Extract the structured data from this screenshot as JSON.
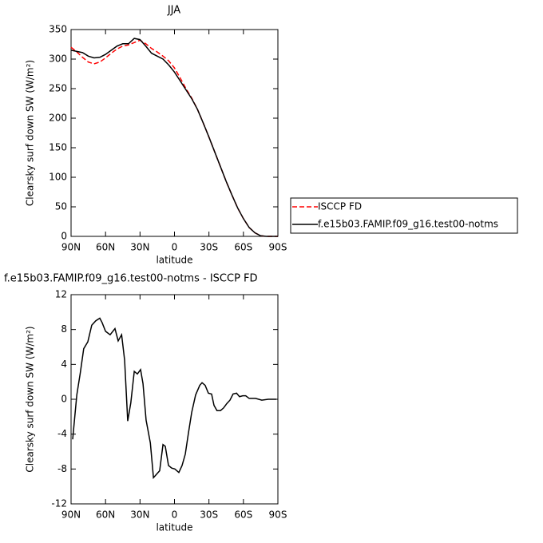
{
  "chart_data": [
    {
      "type": "line",
      "title": "JJA",
      "xlabel": "latitude",
      "ylabel": "Clearsky surf down SW (W/m²)",
      "x": [
        90,
        85,
        80,
        75,
        70,
        65,
        60,
        55,
        50,
        45,
        40,
        35,
        30,
        25,
        20,
        15,
        10,
        5,
        0,
        -5,
        -10,
        -15,
        -20,
        -25,
        -30,
        -35,
        -40,
        -45,
        -50,
        -55,
        -60,
        -65,
        -70,
        -75,
        -80,
        -85,
        -90
      ],
      "series": [
        {
          "name": "ISCCP FD",
          "color": "#ff0000",
          "dash": true,
          "values": [
            320,
            312,
            303,
            295,
            292,
            295,
            302,
            310,
            317,
            322,
            324,
            328,
            332,
            326,
            318,
            312,
            305,
            297,
            285,
            268,
            250,
            234,
            215,
            192,
            168,
            143,
            118,
            93,
            70,
            48,
            30,
            15,
            6,
            1,
            0,
            0,
            0
          ]
        },
        {
          "name": "f.e15b03.FAMIP.f09_g16.test00-notms",
          "color": "#000000",
          "dash": false,
          "values": [
            315,
            313,
            311,
            305,
            302,
            303,
            308,
            315,
            322,
            326,
            326,
            335,
            333,
            322,
            310,
            305,
            300,
            290,
            278,
            263,
            248,
            233,
            215,
            192,
            168,
            143,
            118,
            93,
            70,
            48,
            30,
            15,
            6,
            1,
            0,
            0,
            0
          ]
        }
      ],
      "xlim": [
        90,
        -90
      ],
      "xticks": [
        {
          "value": 90,
          "label": "90N"
        },
        {
          "value": 60,
          "label": "60N"
        },
        {
          "value": 30,
          "label": "30N"
        },
        0,
        {
          "value": -30,
          "label": "30S"
        },
        {
          "value": -60,
          "label": "60S"
        },
        {
          "value": -90,
          "label": "90S"
        }
      ],
      "ylim": [
        0,
        350
      ],
      "yticks": [
        0,
        50,
        100,
        150,
        200,
        250,
        300,
        350
      ],
      "legend": "right"
    },
    {
      "type": "line",
      "title": "f.e15b03.FAMIP.f09_g16.test00-notms - ISCCP FD",
      "xlabel": "latitude",
      "ylabel": "Clearsky surf down SW (W/m²)",
      "x": [
        88.6,
        85,
        82,
        79,
        75.4,
        72,
        68.5,
        65,
        63,
        60,
        56,
        51.8,
        49,
        46,
        43.4,
        40.7,
        38,
        35,
        32.3,
        29.5,
        27.4,
        24.7,
        21,
        18.3,
        12.9,
        10,
        8,
        5.2,
        2.4,
        -0.3,
        -3.8,
        -6.6,
        -9.4,
        -12,
        -15,
        -18.4,
        -22,
        -24,
        -26.7,
        -29.5,
        -32.3,
        -34.4,
        -37,
        -40,
        -42.7,
        -45.5,
        -48.3,
        -51,
        -54,
        -56.6,
        -59.4,
        -62,
        -65,
        -70.5,
        -76,
        -81.6,
        -88.6
      ],
      "series": [
        {
          "color": "#000000",
          "dash": false,
          "values": [
            -4.6,
            0.5,
            3,
            5.8,
            6.6,
            8.5,
            9,
            9.3,
            8.8,
            7.8,
            7.4,
            8.1,
            6.7,
            7.4,
            4.5,
            -2.5,
            -0.4,
            3.2,
            2.9,
            3.4,
            1.8,
            -2.4,
            -5,
            -9,
            -8.2,
            -5.2,
            -5.4,
            -7.6,
            -7.9,
            -8,
            -8.4,
            -7.6,
            -6.3,
            -4,
            -1.5,
            0.5,
            1.6,
            1.9,
            1.6,
            0.7,
            0.6,
            -0.7,
            -1.3,
            -1.3,
            -1,
            -0.5,
            -0.1,
            0.6,
            0.7,
            0.3,
            0.4,
            0.4,
            0.1,
            0.1,
            -0.1,
            0,
            0
          ]
        }
      ],
      "xlim": [
        90,
        -90
      ],
      "xticks": [
        {
          "value": 90,
          "label": "90N"
        },
        {
          "value": 60,
          "label": "60N"
        },
        {
          "value": 30,
          "label": "30N"
        },
        0,
        {
          "value": -30,
          "label": "30S"
        },
        {
          "value": -60,
          "label": "60S"
        },
        {
          "value": -90,
          "label": "90S"
        }
      ],
      "ylim": [
        -12,
        12
      ],
      "yticks": [
        -12,
        -8,
        -4,
        0,
        4,
        8,
        12
      ]
    }
  ]
}
